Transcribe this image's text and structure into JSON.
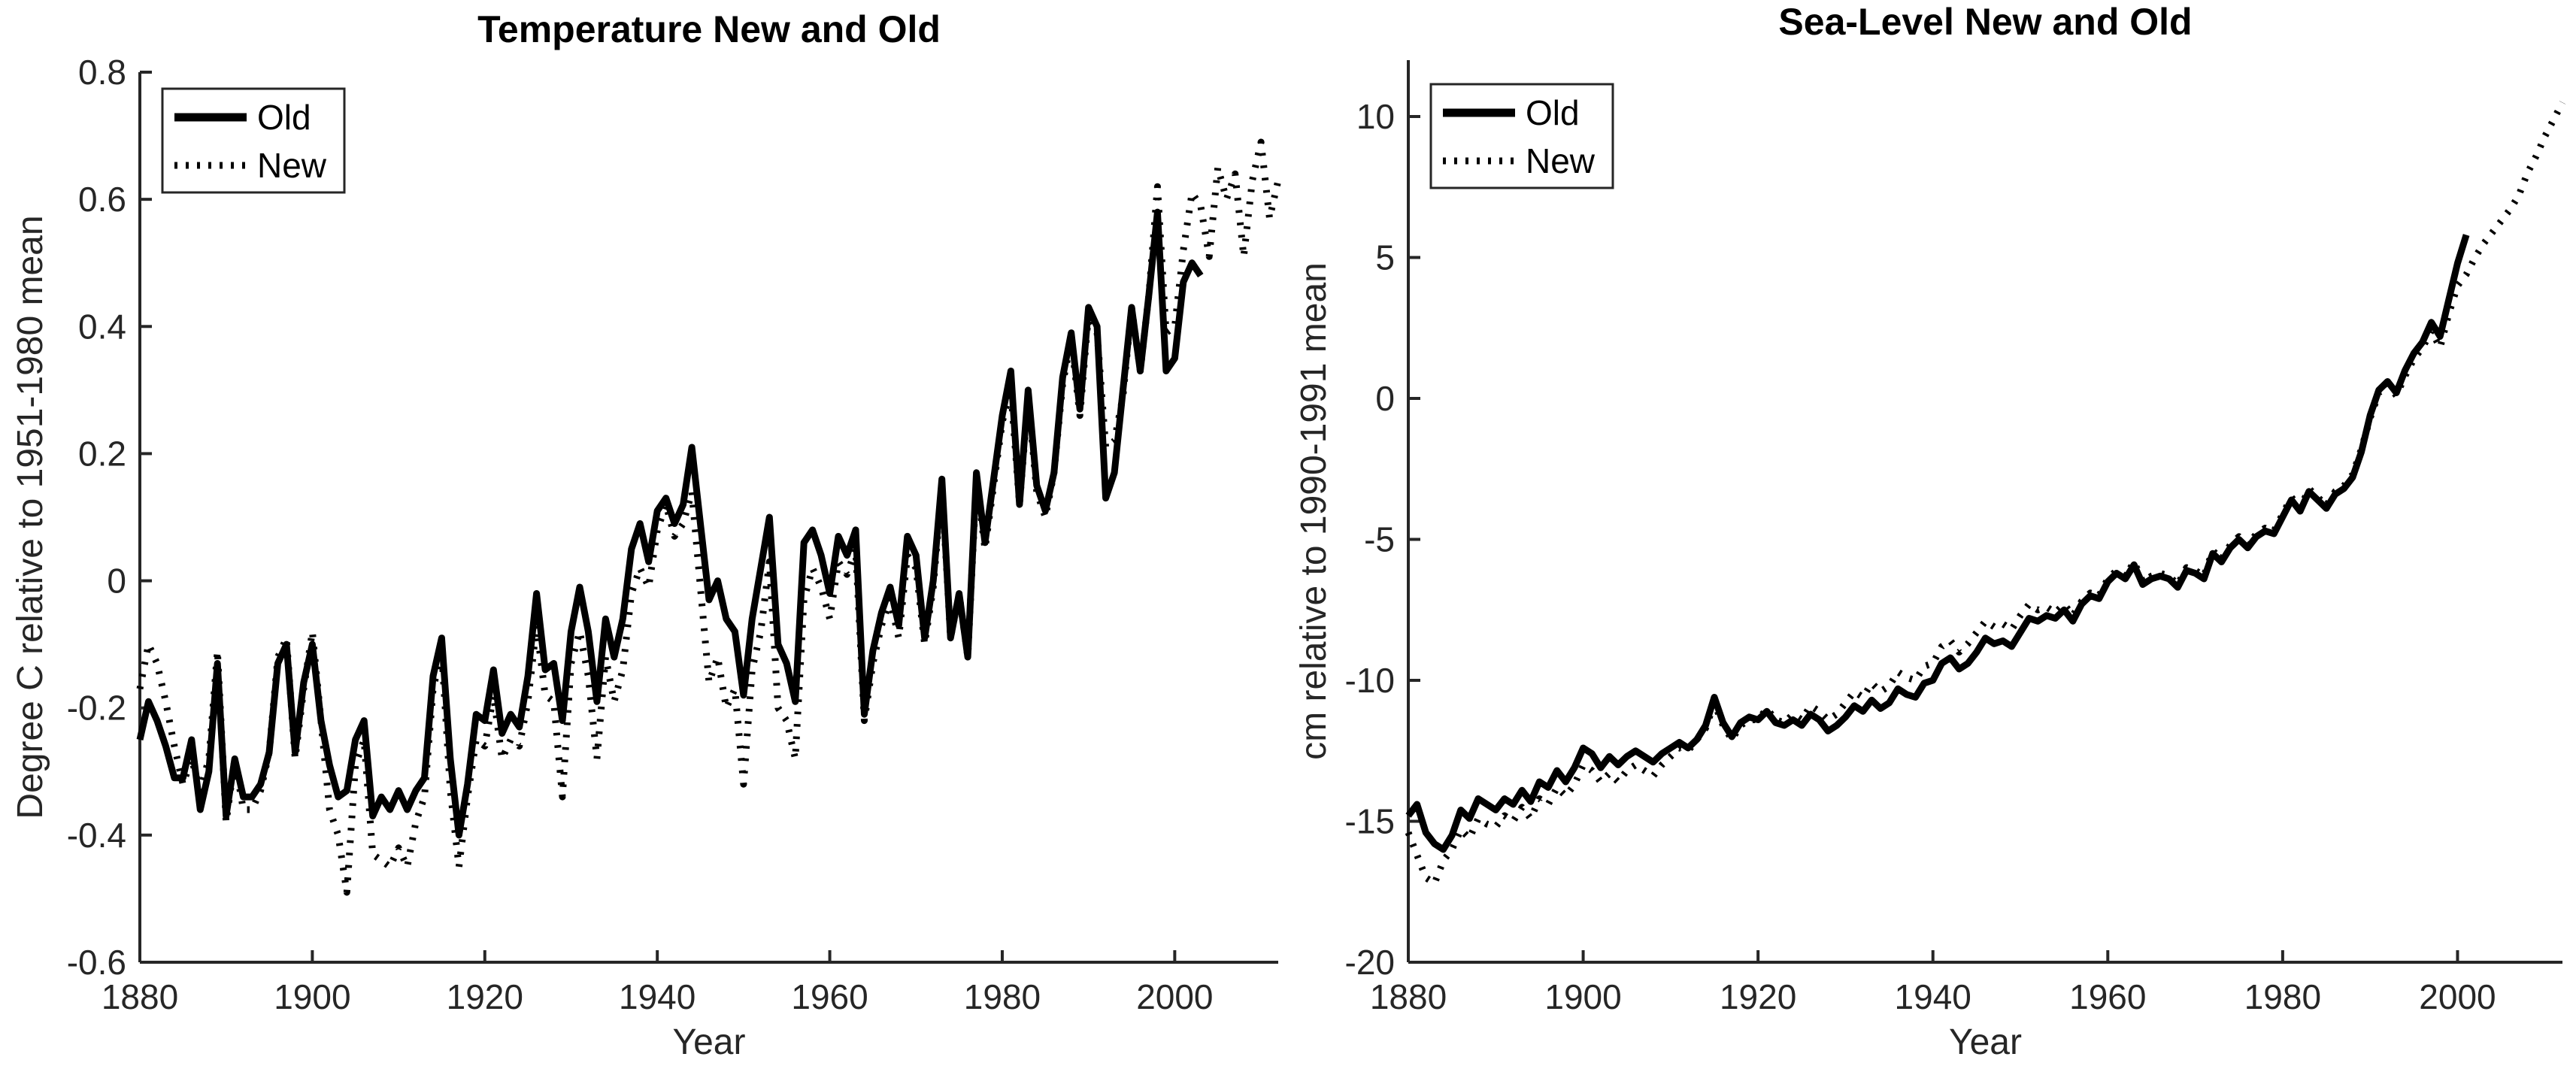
{
  "figure": {
    "background": "#ffffff",
    "axis_color": "#262626",
    "line_color": "#000000"
  },
  "chart_data": [
    {
      "type": "line",
      "title": "Temperature New and Old",
      "xlabel": "Year",
      "ylabel": "Degree C relative to 1951-1980 mean",
      "xlim": [
        1880,
        2012
      ],
      "ylim": [
        -0.6,
        0.8
      ],
      "xticks": [
        1880,
        1900,
        1920,
        1940,
        1960,
        1980,
        2000
      ],
      "yticks": [
        -0.6,
        -0.4,
        -0.2,
        0,
        0.2,
        0.4,
        0.6,
        0.8
      ],
      "grid": false,
      "legend_position": "top-left",
      "series": [
        {
          "name": "Old",
          "style": "solid",
          "start_year": 1880,
          "values": [
            -0.25,
            -0.19,
            -0.22,
            -0.26,
            -0.31,
            -0.31,
            -0.25,
            -0.36,
            -0.3,
            -0.13,
            -0.37,
            -0.28,
            -0.34,
            -0.34,
            -0.32,
            -0.27,
            -0.13,
            -0.1,
            -0.27,
            -0.16,
            -0.1,
            -0.22,
            -0.29,
            -0.34,
            -0.33,
            -0.25,
            -0.22,
            -0.37,
            -0.34,
            -0.36,
            -0.33,
            -0.36,
            -0.33,
            -0.31,
            -0.15,
            -0.09,
            -0.28,
            -0.4,
            -0.32,
            -0.21,
            -0.22,
            -0.14,
            -0.24,
            -0.21,
            -0.23,
            -0.15,
            -0.02,
            -0.14,
            -0.13,
            -0.22,
            -0.08,
            -0.01,
            -0.08,
            -0.19,
            -0.06,
            -0.12,
            -0.06,
            0.05,
            0.09,
            0.03,
            0.11,
            0.13,
            0.09,
            0.12,
            0.21,
            0.09,
            -0.03,
            0.0,
            -0.06,
            -0.08,
            -0.18,
            -0.06,
            0.02,
            0.1,
            -0.1,
            -0.13,
            -0.19,
            0.06,
            0.08,
            0.04,
            -0.02,
            0.07,
            0.04,
            0.08,
            -0.21,
            -0.11,
            -0.05,
            -0.01,
            -0.07,
            0.07,
            0.04,
            -0.09,
            0.0,
            0.16,
            -0.09,
            -0.02,
            -0.12,
            0.17,
            0.06,
            0.16,
            0.26,
            0.33,
            0.12,
            0.3,
            0.15,
            0.11,
            0.17,
            0.32,
            0.39,
            0.27,
            0.43,
            0.4,
            0.13,
            0.17,
            0.3,
            0.43,
            0.33,
            0.45,
            0.58,
            0.33,
            0.35,
            0.47,
            0.5,
            0.48
          ]
        },
        {
          "name": "New",
          "style": "dotted",
          "start_year": 1880,
          "values": [
            -0.17,
            -0.1,
            -0.13,
            -0.19,
            -0.26,
            -0.32,
            -0.28,
            -0.33,
            -0.28,
            -0.11,
            -0.38,
            -0.28,
            -0.36,
            -0.36,
            -0.33,
            -0.27,
            -0.12,
            -0.09,
            -0.28,
            -0.17,
            -0.08,
            -0.22,
            -0.36,
            -0.4,
            -0.49,
            -0.29,
            -0.25,
            -0.43,
            -0.44,
            -0.45,
            -0.42,
            -0.45,
            -0.38,
            -0.34,
            -0.17,
            -0.11,
            -0.33,
            -0.45,
            -0.34,
            -0.25,
            -0.26,
            -0.18,
            -0.28,
            -0.25,
            -0.26,
            -0.19,
            -0.07,
            -0.18,
            -0.19,
            -0.34,
            -0.13,
            -0.08,
            -0.15,
            -0.28,
            -0.12,
            -0.19,
            -0.14,
            -0.02,
            0.02,
            -0.01,
            0.08,
            0.12,
            0.07,
            0.09,
            0.14,
            -0.01,
            -0.16,
            -0.12,
            -0.2,
            -0.17,
            -0.32,
            -0.14,
            -0.08,
            0.03,
            -0.2,
            -0.22,
            -0.28,
            -0.03,
            0.02,
            -0.01,
            -0.06,
            0.03,
            0.01,
            0.05,
            -0.22,
            -0.13,
            -0.07,
            -0.03,
            -0.09,
            0.04,
            0.02,
            -0.1,
            -0.01,
            0.15,
            -0.09,
            -0.02,
            -0.12,
            0.16,
            0.05,
            0.15,
            0.25,
            0.3,
            0.12,
            0.29,
            0.14,
            0.1,
            0.17,
            0.31,
            0.38,
            0.26,
            0.42,
            0.39,
            0.21,
            0.22,
            0.29,
            0.43,
            0.33,
            0.45,
            0.62,
            0.39,
            0.4,
            0.52,
            0.61,
            0.59,
            0.51,
            0.65,
            0.6,
            0.64,
            0.51,
            0.63,
            0.69,
            0.57,
            0.63
          ]
        }
      ]
    },
    {
      "type": "line",
      "title": "Sea-Level New and Old",
      "xlabel": "Year",
      "ylabel": "cm relative to 1990-1991 mean",
      "xlim": [
        1880,
        2012
      ],
      "ylim": [
        -20,
        12
      ],
      "xticks": [
        1880,
        1900,
        1920,
        1940,
        1960,
        1980,
        2000
      ],
      "yticks": [
        -20,
        -15,
        -10,
        -5,
        0,
        5,
        10
      ],
      "grid": false,
      "legend_position": "top-left",
      "series": [
        {
          "name": "Old",
          "style": "solid",
          "start_year": 1880,
          "values": [
            -14.8,
            -14.4,
            -15.4,
            -15.8,
            -16.0,
            -15.5,
            -14.6,
            -14.9,
            -14.2,
            -14.4,
            -14.6,
            -14.2,
            -14.4,
            -13.9,
            -14.3,
            -13.6,
            -13.8,
            -13.2,
            -13.6,
            -13.1,
            -12.4,
            -12.6,
            -13.1,
            -12.7,
            -13.0,
            -12.7,
            -12.5,
            -12.7,
            -12.9,
            -12.6,
            -12.4,
            -12.2,
            -12.4,
            -12.1,
            -11.6,
            -10.6,
            -11.5,
            -12.0,
            -11.5,
            -11.3,
            -11.4,
            -11.1,
            -11.5,
            -11.6,
            -11.4,
            -11.6,
            -11.2,
            -11.4,
            -11.8,
            -11.6,
            -11.3,
            -10.9,
            -11.1,
            -10.7,
            -11.0,
            -10.8,
            -10.3,
            -10.5,
            -10.6,
            -10.1,
            -10.0,
            -9.4,
            -9.2,
            -9.6,
            -9.4,
            -9.0,
            -8.5,
            -8.7,
            -8.6,
            -8.8,
            -8.3,
            -7.8,
            -7.9,
            -7.7,
            -7.8,
            -7.5,
            -7.9,
            -7.3,
            -7.0,
            -7.1,
            -6.5,
            -6.2,
            -6.4,
            -5.9,
            -6.6,
            -6.4,
            -6.3,
            -6.4,
            -6.7,
            -6.1,
            -6.2,
            -6.4,
            -5.5,
            -5.8,
            -5.3,
            -5.0,
            -5.3,
            -4.9,
            -4.7,
            -4.8,
            -4.2,
            -3.6,
            -4.0,
            -3.3,
            -3.6,
            -3.9,
            -3.4,
            -3.2,
            -2.8,
            -1.9,
            -0.6,
            0.3,
            0.6,
            0.2,
            1.0,
            1.6,
            2.0,
            2.7,
            2.2,
            3.5,
            4.8,
            5.8
          ]
        },
        {
          "name": "New",
          "style": "dotted",
          "start_year": 1880,
          "values": [
            -15.4,
            -16.2,
            -17.0,
            -17.2,
            -16.4,
            -16.0,
            -15.3,
            -15.6,
            -14.9,
            -15.1,
            -15.2,
            -14.8,
            -15.0,
            -14.5,
            -14.9,
            -14.2,
            -14.4,
            -13.8,
            -14.1,
            -13.7,
            -13.0,
            -13.2,
            -13.6,
            -13.3,
            -13.6,
            -13.2,
            -13.0,
            -13.2,
            -13.4,
            -13.0,
            -12.7,
            -12.4,
            -12.5,
            -12.1,
            -11.7,
            -10.8,
            -11.6,
            -12.1,
            -11.6,
            -11.4,
            -11.4,
            -11.0,
            -11.4,
            -11.5,
            -11.2,
            -11.4,
            -10.9,
            -11.1,
            -11.4,
            -11.2,
            -10.8,
            -10.4,
            -10.6,
            -10.1,
            -10.4,
            -10.2,
            -9.7,
            -9.9,
            -10.0,
            -9.5,
            -9.4,
            -8.8,
            -8.6,
            -9.0,
            -8.7,
            -8.3,
            -7.9,
            -8.1,
            -8.0,
            -8.2,
            -7.7,
            -7.3,
            -7.5,
            -7.4,
            -7.6,
            -7.3,
            -7.7,
            -7.2,
            -6.9,
            -7.0,
            -6.4,
            -6.1,
            -6.3,
            -5.8,
            -6.5,
            -6.3,
            -6.2,
            -6.3,
            -6.6,
            -6.0,
            -6.1,
            -6.3,
            -5.4,
            -5.7,
            -5.2,
            -4.9,
            -5.2,
            -4.8,
            -4.6,
            -4.7,
            -4.1,
            -3.5,
            -3.9,
            -3.2,
            -3.5,
            -3.8,
            -3.3,
            -3.1,
            -2.7,
            -1.8,
            -0.7,
            0.2,
            0.5,
            0.1,
            0.8,
            1.4,
            1.8,
            2.4,
            1.8,
            3.0,
            4.0,
            4.4,
            5.0,
            5.5,
            5.9,
            6.3,
            6.7,
            7.2,
            8.0,
            8.6,
            9.3,
            9.9,
            10.5
          ]
        }
      ]
    }
  ]
}
